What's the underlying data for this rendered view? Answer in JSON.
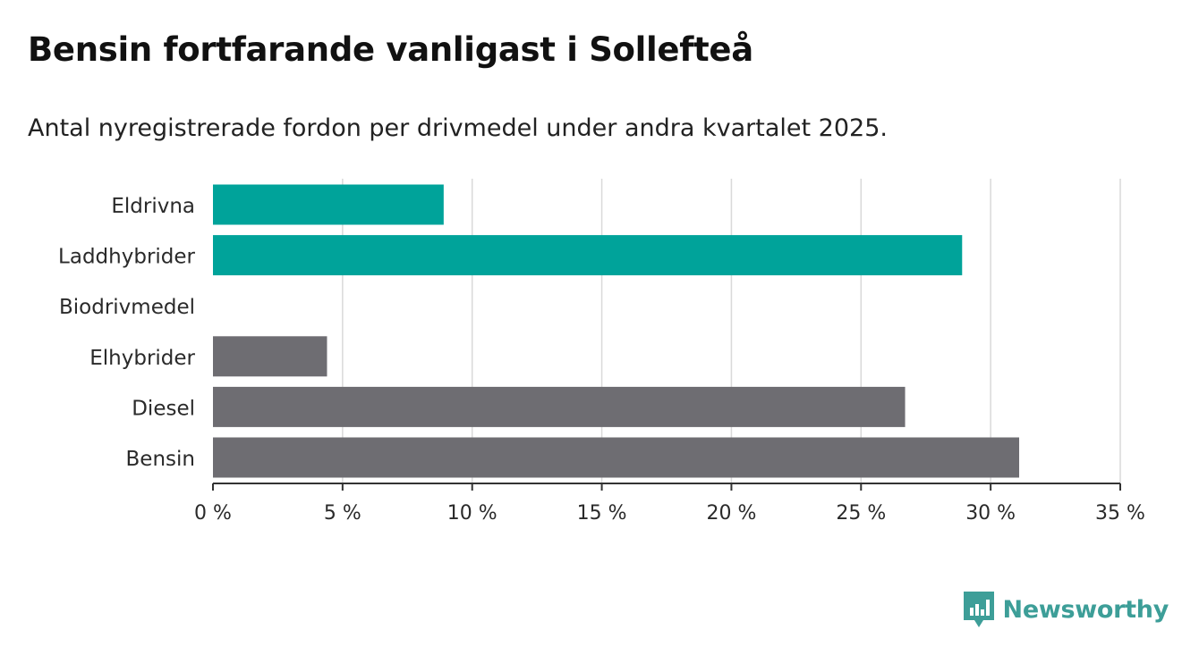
{
  "title": "Bensin fortfarande vanligast i Sollefteå",
  "subtitle": "Antal nyregistrerade fordon per drivmedel under andra kvartalet 2025.",
  "brand": "Newsworthy",
  "colors": {
    "highlight": "#00a39a",
    "default": "#6e6d72",
    "grid": "#d9d9d9",
    "axis": "#333333",
    "brand": "#3d9e98"
  },
  "chart_data": {
    "type": "bar",
    "orientation": "horizontal",
    "title": "Bensin fortfarande vanligast i Sollefteå",
    "subtitle": "Antal nyregistrerade fordon per drivmedel under andra kvartalet 2025.",
    "categories": [
      "Eldrivna",
      "Laddhybrider",
      "Biodrivmedel",
      "Elhybrider",
      "Diesel",
      "Bensin"
    ],
    "values": [
      8.9,
      28.9,
      0,
      4.4,
      26.7,
      31.1
    ],
    "highlighted": [
      true,
      true,
      false,
      false,
      false,
      false
    ],
    "xlim": [
      0,
      35
    ],
    "xticks": [
      0,
      5,
      10,
      15,
      20,
      25,
      30,
      35
    ],
    "tick_labels": [
      "0 %",
      "5 %",
      "10 %",
      "15 %",
      "20 %",
      "25 %",
      "30 %",
      "35 %"
    ],
    "xlabel": "",
    "ylabel": "",
    "grid": true,
    "legend": "none"
  }
}
